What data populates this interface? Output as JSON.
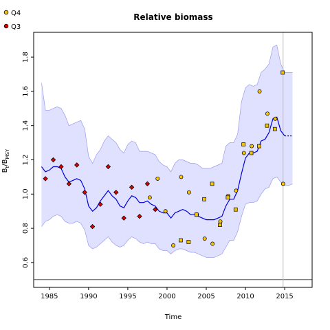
{
  "chart_data": {
    "type": "line",
    "title": "Relative biomass",
    "xlabel": "Time",
    "ylabel": {
      "main": "B",
      "sub_t": "t",
      "slash": "/B",
      "sub_msy": "MSY"
    },
    "xlim": [
      1983,
      2018.5
    ],
    "ylim": [
      0.455,
      1.945
    ],
    "xticks": [
      "1985",
      "1990",
      "1995",
      "2000",
      "2005",
      "2010",
      "2015"
    ],
    "yticks": [
      "0.6",
      "0.8",
      "1.0",
      "1.2",
      "1.4",
      "1.6",
      "1.8"
    ],
    "reference_line_y": 0.5,
    "current_year_line_x": 2014.8,
    "legend": [
      {
        "label": "Q4",
        "color": "#f5c400",
        "shape": "circle"
      },
      {
        "label": "Q3",
        "color": "#dd0000",
        "shape": "circle"
      }
    ],
    "series": [
      {
        "name": "Q3",
        "color": "#dd0000",
        "marker": "diamond",
        "x": [
          1984.5,
          1985.5,
          1986.5,
          1987.5,
          1988.5,
          1989.5,
          1990.5,
          1991.5,
          1992.5,
          1993.5,
          1994.5,
          1995.5,
          1996.5,
          1997.5,
          1998.5
        ],
        "y": [
          1.09,
          1.2,
          1.16,
          1.06,
          1.17,
          1.01,
          0.81,
          0.94,
          1.16,
          1.01,
          0.86,
          1.04,
          0.87,
          1.06,
          0.91
        ]
      },
      {
        "name": "Q4",
        "color": "#f5c400",
        "marker": "circle",
        "x": [
          1997.8,
          1998.8,
          1999.8,
          2000.8,
          2001.8,
          2002.8,
          2003.8,
          2004.8,
          2005.8,
          2006.8,
          2007.8,
          2008.8,
          2009.8,
          2010.8,
          2011.8,
          2012.8,
          2013.8,
          2014.8
        ],
        "y": [
          0.98,
          1.09,
          0.9,
          0.7,
          1.1,
          1.01,
          0.88,
          0.74,
          0.71,
          0.84,
          0.99,
          1.02,
          1.24,
          1.28,
          1.6,
          1.47,
          1.44,
          1.06
        ]
      },
      {
        "name": "Q4-squares",
        "color": "#f5c400",
        "marker": "square",
        "x": [
          2001.75,
          2002.75,
          2003.75,
          2004.75,
          2005.75,
          2006.75,
          2007.75,
          2008.75,
          2009.75,
          2010.75,
          2011.75,
          2012.75,
          2013.75,
          2014.75
        ],
        "y": [
          0.73,
          0.72,
          0.88,
          0.97,
          1.06,
          0.82,
          0.98,
          0.91,
          1.29,
          1.24,
          1.28,
          1.4,
          1.38,
          1.71
        ]
      },
      {
        "name": "Estimate",
        "color": "#0000dd",
        "marker": "none",
        "x": [
          1984.0,
          1984.5,
          1985.0,
          1985.5,
          1986.0,
          1986.5,
          1987.0,
          1987.5,
          1988.0,
          1988.5,
          1989.0,
          1989.5,
          1990.0,
          1990.5,
          1991.0,
          1991.5,
          1992.0,
          1992.5,
          1993.0,
          1993.5,
          1994.0,
          1994.5,
          1995.0,
          1995.5,
          1996.0,
          1996.5,
          1997.0,
          1997.5,
          1998.0,
          1998.5,
          1999.0,
          1999.5,
          2000.0,
          2000.5,
          2001.0,
          2001.5,
          2002.0,
          2002.5,
          2003.0,
          2003.5,
          2004.0,
          2004.5,
          2005.0,
          2005.5,
          2006.0,
          2006.5,
          2007.0,
          2007.5,
          2008.0,
          2008.5,
          2009.0,
          2009.5,
          2010.0,
          2010.5,
          2011.0,
          2011.5,
          2012.0,
          2012.5,
          2013.0,
          2013.5,
          2014.0,
          2014.5,
          2015.0
        ],
        "y": [
          1.16,
          1.13,
          1.14,
          1.16,
          1.16,
          1.15,
          1.1,
          1.07,
          1.08,
          1.09,
          1.08,
          1.03,
          0.93,
          0.9,
          0.92,
          0.96,
          0.99,
          1.02,
          0.99,
          0.97,
          0.93,
          0.92,
          0.96,
          0.99,
          0.98,
          0.95,
          0.95,
          0.96,
          0.94,
          0.93,
          0.9,
          0.89,
          0.89,
          0.86,
          0.89,
          0.9,
          0.91,
          0.9,
          0.88,
          0.88,
          0.87,
          0.86,
          0.85,
          0.85,
          0.85,
          0.86,
          0.87,
          0.93,
          0.97,
          0.97,
          1.02,
          1.12,
          1.21,
          1.24,
          1.24,
          1.25,
          1.31,
          1.32,
          1.36,
          1.44,
          1.45,
          1.37,
          1.34
        ]
      },
      {
        "name": "Forecast",
        "color": "#0000dd",
        "marker": "none",
        "x": [
          2015.0,
          2016.0
        ],
        "y": [
          1.34,
          1.34
        ]
      }
    ],
    "band": {
      "color": "#e0e0ff",
      "edge_color": "#9a9aee",
      "x": [
        1984.0,
        1984.5,
        1985.0,
        1985.5,
        1986.0,
        1986.5,
        1987.0,
        1987.5,
        1988.0,
        1988.5,
        1989.0,
        1989.5,
        1990.0,
        1990.5,
        1991.0,
        1991.5,
        1992.0,
        1992.5,
        1993.0,
        1993.5,
        1994.0,
        1994.5,
        1995.0,
        1995.5,
        1996.0,
        1996.5,
        1997.0,
        1997.5,
        1998.0,
        1998.5,
        1999.0,
        1999.5,
        2000.0,
        2000.5,
        2001.0,
        2001.5,
        2002.0,
        2002.5,
        2003.0,
        2003.5,
        2004.0,
        2004.5,
        2005.0,
        2005.5,
        2006.0,
        2006.5,
        2007.0,
        2007.5,
        2008.0,
        2008.5,
        2009.0,
        2009.5,
        2010.0,
        2010.5,
        2011.0,
        2011.5,
        2012.0,
        2012.5,
        2013.0,
        2013.5,
        2014.0,
        2014.5,
        2015.0,
        2015.5,
        2016.0
      ],
      "upper": [
        1.65,
        1.49,
        1.49,
        1.5,
        1.51,
        1.5,
        1.46,
        1.4,
        1.41,
        1.42,
        1.43,
        1.38,
        1.22,
        1.18,
        1.23,
        1.26,
        1.31,
        1.34,
        1.32,
        1.3,
        1.26,
        1.24,
        1.29,
        1.31,
        1.3,
        1.25,
        1.25,
        1.25,
        1.24,
        1.23,
        1.19,
        1.17,
        1.16,
        1.13,
        1.18,
        1.2,
        1.2,
        1.19,
        1.18,
        1.18,
        1.17,
        1.15,
        1.15,
        1.15,
        1.16,
        1.17,
        1.18,
        1.28,
        1.3,
        1.3,
        1.35,
        1.54,
        1.62,
        1.64,
        1.63,
        1.64,
        1.71,
        1.73,
        1.76,
        1.86,
        1.87,
        1.76,
        1.71,
        1.71,
        1.71
      ],
      "lower": [
        0.81,
        0.84,
        0.85,
        0.87,
        0.88,
        0.87,
        0.84,
        0.83,
        0.83,
        0.84,
        0.83,
        0.79,
        0.7,
        0.68,
        0.69,
        0.71,
        0.73,
        0.75,
        0.72,
        0.7,
        0.69,
        0.7,
        0.73,
        0.75,
        0.74,
        0.72,
        0.71,
        0.72,
        0.71,
        0.71,
        0.68,
        0.67,
        0.67,
        0.65,
        0.67,
        0.68,
        0.68,
        0.67,
        0.66,
        0.66,
        0.65,
        0.64,
        0.63,
        0.63,
        0.63,
        0.64,
        0.65,
        0.69,
        0.73,
        0.73,
        0.78,
        0.87,
        0.94,
        0.95,
        0.95,
        0.96,
        1.0,
        1.03,
        1.04,
        1.09,
        1.1,
        1.07,
        1.05,
        1.05,
        1.06
      ]
    }
  }
}
